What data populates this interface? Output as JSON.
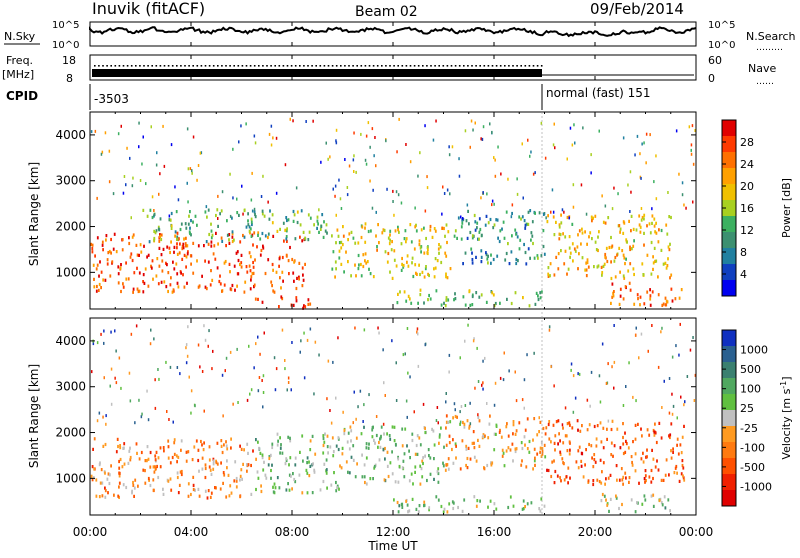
{
  "header": {
    "station": "Inuvik (fitACF)",
    "beam": "Beam 02",
    "date": "09/Feb/2014"
  },
  "status_panels": {
    "nsky_label": "N.Sky",
    "nsearch_label": "N.Search",
    "nsearch_dots": "………",
    "left_ticks_top": [
      "10^5",
      "10^0"
    ],
    "right_ticks_top": [
      "10^5",
      "10^0"
    ],
    "freq_label": "Freq.",
    "freq_unit": "[MHz]",
    "freq_ticks": [
      "18",
      "8"
    ],
    "nave_label": "Nave",
    "nave_dots": "……",
    "nave_ticks": [
      "60",
      "0"
    ],
    "cpid_label": "CPID",
    "cpid_left": "-3503",
    "cpid_right": "normal (fast) 151"
  },
  "x_axis": {
    "title": "Time UT",
    "ticks": [
      "00:00",
      "04:00",
      "08:00",
      "12:00",
      "16:00",
      "20:00",
      "00:00"
    ],
    "range_hours": [
      0,
      24
    ]
  },
  "colorbars": {
    "power": {
      "title": "Power [dB]",
      "labels": [
        "28",
        "24",
        "20",
        "16",
        "12",
        "8",
        "4"
      ],
      "colors": [
        "#e00000",
        "#ff3a00",
        "#ff7000",
        "#ffa000",
        "#f0c000",
        "#a8d020",
        "#3cb060",
        "#3c9070",
        "#2080a0",
        "#1040c0",
        "#0000f0"
      ]
    },
    "velocity": {
      "title": "Velocity [m s",
      "title_sup": "-1",
      "title_close": "]",
      "labels": [
        "1000",
        "500",
        "100",
        "25",
        "-25",
        "-100",
        "-500",
        "-1000"
      ],
      "colors": [
        "#1030c0",
        "#2a6090",
        "#3a8070",
        "#50a860",
        "#60c040",
        "#c0c0c0",
        "#ff9a20",
        "#ff7a10",
        "#ff5000",
        "#f02000",
        "#e00000"
      ]
    }
  },
  "chart_data": [
    {
      "type": "heatmap",
      "panel": "power",
      "ylabel": "Slant Range [km]",
      "xlabel": "Time UT",
      "ylim": [
        200,
        4500
      ],
      "yticks": [
        1000,
        2000,
        3000,
        4000
      ],
      "xlim_hours": [
        0,
        24
      ],
      "colorbar": "Power [dB]",
      "colorbar_range": [
        0,
        32
      ],
      "regions": [
        {
          "t0": 0.0,
          "t1": 8.5,
          "r0": 600,
          "r1": 1900,
          "level": 27
        },
        {
          "t0": 2.0,
          "t1": 9.5,
          "r0": 1700,
          "r1": 2400,
          "level": 12
        },
        {
          "t0": 9.5,
          "t1": 14.5,
          "r0": 900,
          "r1": 2100,
          "level": 18
        },
        {
          "t0": 14.5,
          "t1": 18.0,
          "r0": 1200,
          "r1": 2400,
          "level": 10
        },
        {
          "t0": 12.0,
          "t1": 18.0,
          "r0": 300,
          "r1": 650,
          "level": 14
        },
        {
          "t0": 18.0,
          "t1": 23.0,
          "r0": 900,
          "r1": 2300,
          "level": 20
        },
        {
          "t0": 20.5,
          "t1": 23.5,
          "r0": 300,
          "r1": 800,
          "level": 26
        },
        {
          "t0": 6.5,
          "t1": 9.0,
          "r0": 250,
          "r1": 500,
          "level": 28
        }
      ]
    },
    {
      "type": "heatmap",
      "panel": "velocity",
      "ylabel": "Slant Range [km]",
      "xlabel": "Time UT",
      "ylim": [
        200,
        4500
      ],
      "yticks": [
        1000,
        2000,
        3000,
        4000
      ],
      "xlim_hours": [
        0,
        24
      ],
      "colorbar": "Velocity [m s-1]",
      "colorbar_range": [
        -1000,
        1000
      ],
      "regions": [
        {
          "t0": 0.0,
          "t1": 6.5,
          "r0": 600,
          "r1": 1900,
          "level": -300
        },
        {
          "t0": 6.5,
          "t1": 10.0,
          "r0": 700,
          "r1": 2000,
          "level": 200
        },
        {
          "t0": 10.0,
          "t1": 14.0,
          "r0": 900,
          "r1": 2200,
          "level": 150
        },
        {
          "t0": 14.0,
          "t1": 18.0,
          "r0": 1200,
          "r1": 2400,
          "level": -200
        },
        {
          "t0": 18.0,
          "t1": 23.5,
          "r0": 900,
          "r1": 2300,
          "level": -500
        },
        {
          "t0": 12.0,
          "t1": 18.0,
          "r0": 300,
          "r1": 650,
          "level": 120
        },
        {
          "t0": 20.0,
          "t1": 23.0,
          "r0": 300,
          "r1": 700,
          "level": 100
        }
      ]
    }
  ]
}
